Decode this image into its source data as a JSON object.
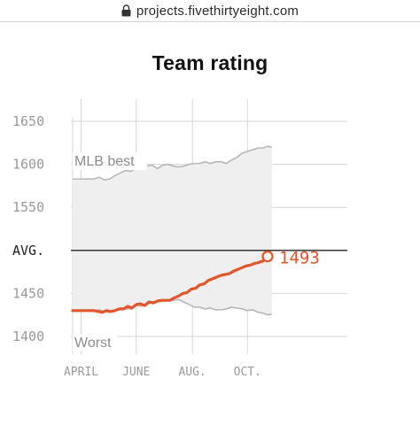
{
  "browser": {
    "url": "projects.fivethirtyeight.com",
    "icon": "lock-icon"
  },
  "chart_data": {
    "type": "line",
    "title": "Team rating",
    "xlabel": "",
    "ylabel": "",
    "x_ticks": [
      "APRIL",
      "JUNE",
      "AUG.",
      "OCT."
    ],
    "y_ticks": [
      "1650",
      "1600",
      "1550",
      "AVG.",
      "1450",
      "1400"
    ],
    "y_tick_values": [
      1650,
      1600,
      1550,
      1500,
      1450,
      1400
    ],
    "ylim": [
      1390,
      1660
    ],
    "xlim": [
      0,
      195
    ],
    "grid": true,
    "average": 1500,
    "band_labels": {
      "best": "MLB best",
      "worst": "Worst"
    },
    "end_label": "1493",
    "colors": {
      "team": "#e1562b",
      "band": "#efefef",
      "band_edge": "#b6b6b6",
      "grid": "#d6d6d6",
      "avg": "#222222",
      "tick_text": "#999999"
    },
    "series": [
      {
        "name": "Team",
        "x": [
          0,
          8,
          16,
          20,
          24,
          28,
          32,
          36,
          40,
          44,
          48,
          52,
          56,
          60,
          64,
          68,
          72,
          76,
          80,
          84,
          88,
          92,
          96,
          100,
          104,
          108,
          112,
          116,
          120,
          124,
          128,
          132,
          136,
          140,
          144,
          148,
          152,
          156,
          160,
          164,
          168,
          172,
          176,
          180,
          184
        ],
        "y": [
          1430,
          1430,
          1430,
          1430,
          1429,
          1428,
          1430,
          1429,
          1430,
          1432,
          1432,
          1435,
          1433,
          1437,
          1438,
          1436,
          1440,
          1439,
          1441,
          1442,
          1442,
          1442,
          1445,
          1447,
          1450,
          1451,
          1455,
          1456,
          1460,
          1461,
          1465,
          1467,
          1469,
          1471,
          1472,
          1473,
          1476,
          1478,
          1480,
          1482,
          1483,
          1485,
          1486,
          1488,
          1493
        ]
      },
      {
        "name": "MLB best",
        "x": [
          0,
          10,
          20,
          25,
          30,
          35,
          40,
          45,
          50,
          55,
          60,
          65,
          70,
          75,
          80,
          85,
          90,
          95,
          100,
          105,
          110,
          115,
          120,
          125,
          130,
          135,
          140,
          145,
          150,
          155,
          160,
          165,
          170,
          175,
          180,
          184,
          188
        ],
        "y": [
          1583,
          1583,
          1583,
          1585,
          1582,
          1583,
          1587,
          1590,
          1593,
          1592,
          1596,
          1595,
          1598,
          1599,
          1595,
          1599,
          1600,
          1598,
          1597,
          1598,
          1600,
          1601,
          1601,
          1603,
          1601,
          1603,
          1603,
          1601,
          1605,
          1608,
          1613,
          1615,
          1617,
          1619,
          1619,
          1621,
          1620
        ]
      },
      {
        "name": "Worst",
        "x": [
          0,
          10,
          20,
          25,
          30,
          35,
          40,
          45,
          50,
          55,
          60,
          65,
          70,
          75,
          80,
          85,
          90,
          95,
          100,
          105,
          110,
          115,
          120,
          125,
          130,
          135,
          140,
          145,
          150,
          155,
          160,
          165,
          170,
          175,
          180,
          184,
          188
        ],
        "y": [
          1430,
          1430,
          1430,
          1431,
          1429,
          1428,
          1430,
          1431,
          1432,
          1432,
          1436,
          1435,
          1437,
          1440,
          1441,
          1441,
          1443,
          1442,
          1443,
          1440,
          1437,
          1434,
          1434,
          1432,
          1433,
          1431,
          1431,
          1432,
          1434,
          1433,
          1432,
          1430,
          1431,
          1428,
          1427,
          1425,
          1426
        ]
      }
    ]
  }
}
